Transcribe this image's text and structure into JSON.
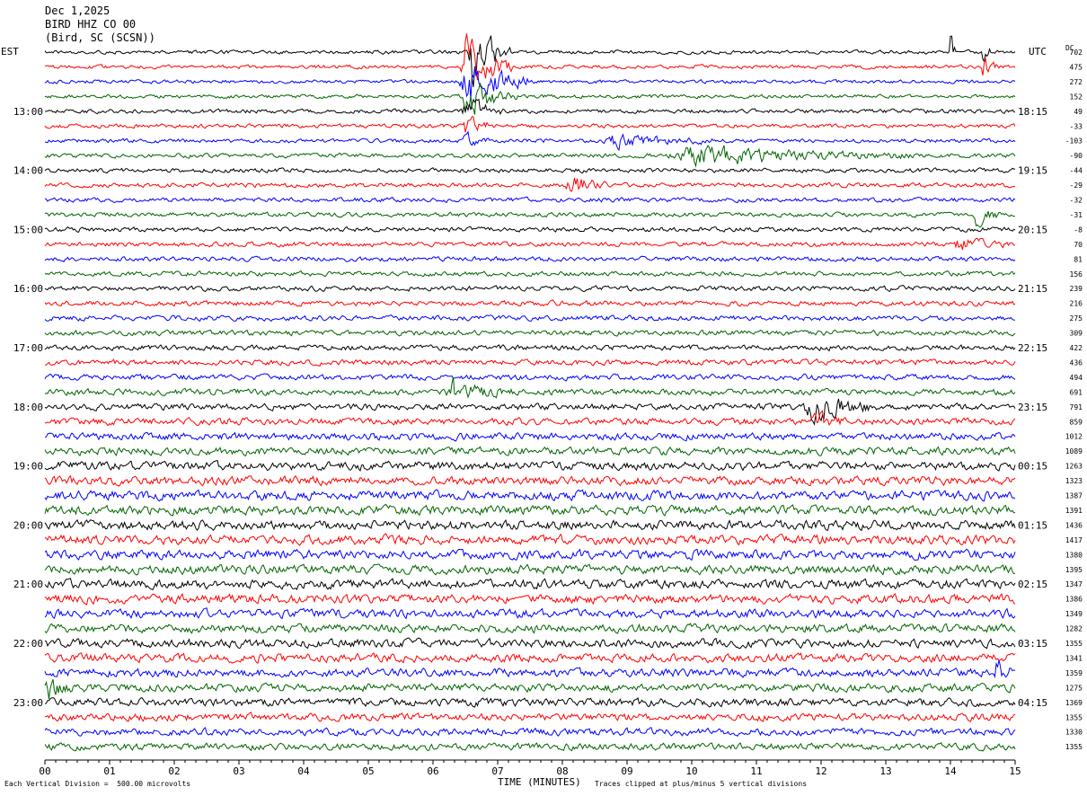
{
  "header": {
    "date": "Dec 1,2025",
    "channel": "BIRD HHZ CO 00",
    "location": "(Bird, SC (SCSN))"
  },
  "left_tz": "EST",
  "right_tz": "UTC",
  "dc_label": "DC",
  "footer": {
    "left": "Each Vertical Division =  500.00 microvolts",
    "xlabel": "TIME (MINUTES)",
    "right": "Traces clipped at plus/minus 5 vertical divisions"
  },
  "chart_data": {
    "type": "helicorder",
    "minutes_per_line": 15,
    "xlim": [
      0,
      15
    ],
    "x_ticks": [
      "00",
      "01",
      "02",
      "03",
      "04",
      "05",
      "06",
      "07",
      "08",
      "09",
      "10",
      "11",
      "12",
      "13",
      "14",
      "15"
    ],
    "line_colors": [
      "#000000",
      "#ff0000",
      "#0000ff",
      "#006400"
    ],
    "left_labels": [
      {
        "line": 4,
        "text": "13:00"
      },
      {
        "line": 8,
        "text": "14:00"
      },
      {
        "line": 12,
        "text": "15:00"
      },
      {
        "line": 16,
        "text": "16:00"
      },
      {
        "line": 20,
        "text": "17:00"
      },
      {
        "line": 24,
        "text": "18:00"
      },
      {
        "line": 28,
        "text": "19:00"
      },
      {
        "line": 32,
        "text": "20:00"
      },
      {
        "line": 36,
        "text": "21:00"
      },
      {
        "line": 40,
        "text": "22:00"
      },
      {
        "line": 44,
        "text": "23:00"
      }
    ],
    "right_labels": [
      {
        "line": 4,
        "text": "18:15"
      },
      {
        "line": 8,
        "text": "19:15"
      },
      {
        "line": 12,
        "text": "20:15"
      },
      {
        "line": 16,
        "text": "21:15"
      },
      {
        "line": 20,
        "text": "22:15"
      },
      {
        "line": 24,
        "text": "23:15"
      },
      {
        "line": 28,
        "text": "00:15"
      },
      {
        "line": 32,
        "text": "01:15"
      },
      {
        "line": 36,
        "text": "02:15"
      },
      {
        "line": 40,
        "text": "03:15"
      },
      {
        "line": 44,
        "text": "04:15"
      }
    ],
    "dc_offsets": [
      "702",
      "475",
      "272",
      "152",
      "49",
      "-33",
      "-103",
      "-90",
      "-44",
      "-29",
      "-32",
      "-31",
      "-8",
      "70",
      "81",
      "156",
      "239",
      "216",
      "275",
      "309",
      "422",
      "436",
      "494",
      "691",
      "791",
      "859",
      "1012",
      "1089",
      "1263",
      "1323",
      "1387",
      "1391",
      "1436",
      "1417",
      "1380",
      "1395",
      "1347",
      "1386",
      "1349",
      "1282",
      "1355",
      "1341",
      "1359",
      "1275",
      "1369",
      "1355",
      "1330",
      "1355"
    ],
    "amplitude_profile": [
      2.2,
      2.2,
      2.2,
      2.2,
      2.4,
      2.4,
      2.4,
      2.5,
      2.6,
      2.6,
      2.6,
      2.6,
      2.7,
      2.8,
      2.8,
      2.8,
      2.9,
      3,
      3,
      3.1,
      3.2,
      3.3,
      3.4,
      3.6,
      3.8,
      4,
      4.3,
      4.6,
      5,
      5.2,
      5.4,
      5.5,
      5.5,
      5.5,
      5.4,
      5.4,
      5.3,
      5.3,
      5.2,
      5.1,
      5,
      5,
      4.9,
      4.8,
      4.6,
      4.4,
      4.2,
      4
    ],
    "events": [
      {
        "line": 0,
        "minute": 6.6,
        "duration": 0.5,
        "amp": 45,
        "clip_top": true
      },
      {
        "line": 1,
        "minute": 6.5,
        "duration": 0.6,
        "amp": 40
      },
      {
        "line": 2,
        "minute": 6.5,
        "duration": 0.8,
        "amp": 35
      },
      {
        "line": 3,
        "minute": 6.5,
        "duration": 0.7,
        "amp": 25
      },
      {
        "line": 4,
        "minute": 6.5,
        "duration": 0.5,
        "amp": 18
      },
      {
        "line": 5,
        "minute": 6.5,
        "duration": 0.4,
        "amp": 14
      },
      {
        "line": 6,
        "minute": 6.5,
        "duration": 0.3,
        "amp": 12
      },
      {
        "line": 7,
        "minute": 10.0,
        "duration": 2.8,
        "amp": 12
      },
      {
        "line": 6,
        "minute": 8.8,
        "duration": 1.4,
        "amp": 8
      },
      {
        "line": 9,
        "minute": 8.1,
        "duration": 0.5,
        "amp": 14
      },
      {
        "line": 0,
        "minute": 14.0,
        "duration": 0.1,
        "amp": 25
      },
      {
        "line": 0,
        "minute": 14.5,
        "duration": 0.1,
        "amp": 25
      },
      {
        "line": 1,
        "minute": 14.5,
        "duration": 0.2,
        "amp": 16
      },
      {
        "line": 11,
        "minute": 14.4,
        "duration": 0.3,
        "amp": 14
      },
      {
        "line": 13,
        "minute": 14.1,
        "duration": 0.6,
        "amp": 10
      },
      {
        "line": 23,
        "minute": 6.3,
        "duration": 0.8,
        "amp": 14
      },
      {
        "line": 24,
        "minute": 11.8,
        "duration": 0.8,
        "amp": 20
      },
      {
        "line": 25,
        "minute": 11.9,
        "duration": 0.4,
        "amp": 10
      },
      {
        "line": 42,
        "minute": 14.7,
        "duration": 0.3,
        "amp": 14
      },
      {
        "line": 43,
        "minute": 0.05,
        "duration": 0.35,
        "amp": 13
      }
    ]
  }
}
